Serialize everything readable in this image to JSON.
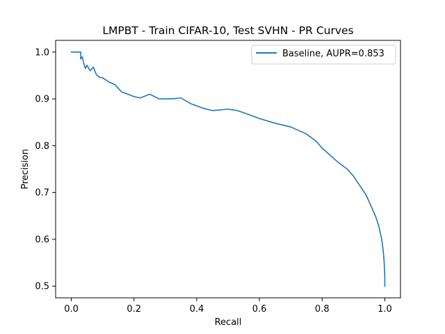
{
  "chart_data": {
    "type": "line",
    "title": "LMPBT - Train CIFAR-10, Test SVHN - PR Curves",
    "xlabel": "Recall",
    "ylabel": "Precision",
    "xlim": [
      -0.05,
      1.05
    ],
    "ylim": [
      0.475,
      1.025
    ],
    "xticks": [
      0.0,
      0.2,
      0.4,
      0.6,
      0.8,
      1.0
    ],
    "xtick_labels": [
      "0.0",
      "0.2",
      "0.4",
      "0.6",
      "0.8",
      "1.0"
    ],
    "yticks": [
      0.5,
      0.6,
      0.7,
      0.8,
      0.9,
      1.0
    ],
    "ytick_labels": [
      "0.5",
      "0.6",
      "0.7",
      "0.8",
      "0.9",
      "1.0"
    ],
    "grid": false,
    "legend_position": "top-right",
    "series": [
      {
        "name": "Baseline, AUPR=0.853",
        "color": "#1f77b4",
        "x": [
          0.0,
          0.03,
          0.03,
          0.035,
          0.04,
          0.045,
          0.05,
          0.06,
          0.07,
          0.08,
          0.09,
          0.1,
          0.12,
          0.14,
          0.16,
          0.18,
          0.2,
          0.22,
          0.25,
          0.28,
          0.32,
          0.35,
          0.38,
          0.4,
          0.42,
          0.45,
          0.5,
          0.53,
          0.56,
          0.6,
          0.65,
          0.7,
          0.75,
          0.78,
          0.8,
          0.85,
          0.88,
          0.9,
          0.92,
          0.94,
          0.95,
          0.96,
          0.97,
          0.98,
          0.985,
          0.99,
          0.995,
          0.998,
          1.0,
          1.0
        ],
        "y": [
          1.0,
          1.0,
          0.985,
          0.99,
          0.975,
          0.965,
          0.972,
          0.96,
          0.968,
          0.952,
          0.946,
          0.945,
          0.936,
          0.93,
          0.915,
          0.91,
          0.905,
          0.902,
          0.91,
          0.9,
          0.9,
          0.902,
          0.89,
          0.885,
          0.88,
          0.875,
          0.878,
          0.875,
          0.868,
          0.858,
          0.848,
          0.84,
          0.825,
          0.81,
          0.795,
          0.765,
          0.75,
          0.735,
          0.715,
          0.695,
          0.68,
          0.665,
          0.65,
          0.63,
          0.615,
          0.6,
          0.575,
          0.55,
          0.52,
          0.5
        ]
      }
    ]
  }
}
